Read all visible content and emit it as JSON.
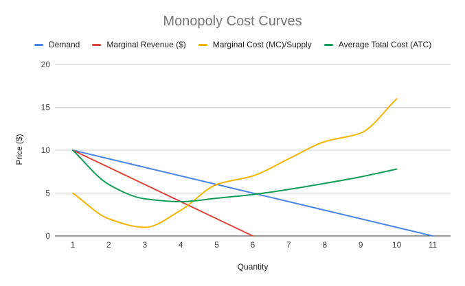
{
  "chart_data": {
    "type": "line",
    "title": "Monopoly Cost Curves",
    "xlabel": "Quantity",
    "ylabel": "Price ($)",
    "x_ticks": [
      1,
      2,
      3,
      4,
      5,
      6,
      7,
      8,
      9,
      10,
      11
    ],
    "xlim": [
      1,
      11
    ],
    "y_ticks": [
      0,
      5,
      10,
      15,
      20
    ],
    "ylim": [
      0,
      20
    ],
    "grid": true,
    "legend_position": "top",
    "series": [
      {
        "name": "Demand",
        "color": "#4a86e8",
        "x": [
          1,
          2,
          3,
          4,
          5,
          6,
          7,
          8,
          9,
          10,
          11
        ],
        "y": [
          10,
          9,
          8,
          7,
          6,
          5,
          4,
          3,
          2,
          1,
          0
        ]
      },
      {
        "name": "Marginal Revenue ($)",
        "color": "#db4437",
        "x": [
          1,
          2,
          3,
          4,
          5,
          6
        ],
        "y": [
          10,
          8,
          6,
          4,
          2,
          0
        ]
      },
      {
        "name": "Marginal Cost (MC)/Supply",
        "color": "#f4b400",
        "x": [
          1,
          2,
          3,
          4,
          5,
          6,
          7,
          8,
          9,
          10
        ],
        "y": [
          5,
          2,
          1,
          3,
          6,
          7,
          9,
          11,
          12,
          16
        ]
      },
      {
        "name": "Average Total Cost (ATC)",
        "color": "#0f9d58",
        "x": [
          1,
          2,
          3,
          4,
          5,
          6,
          7,
          8,
          9,
          10
        ],
        "y": [
          10,
          6,
          4.33,
          4,
          4.4,
          4.83,
          5.43,
          6.13,
          6.89,
          7.8
        ]
      }
    ]
  }
}
